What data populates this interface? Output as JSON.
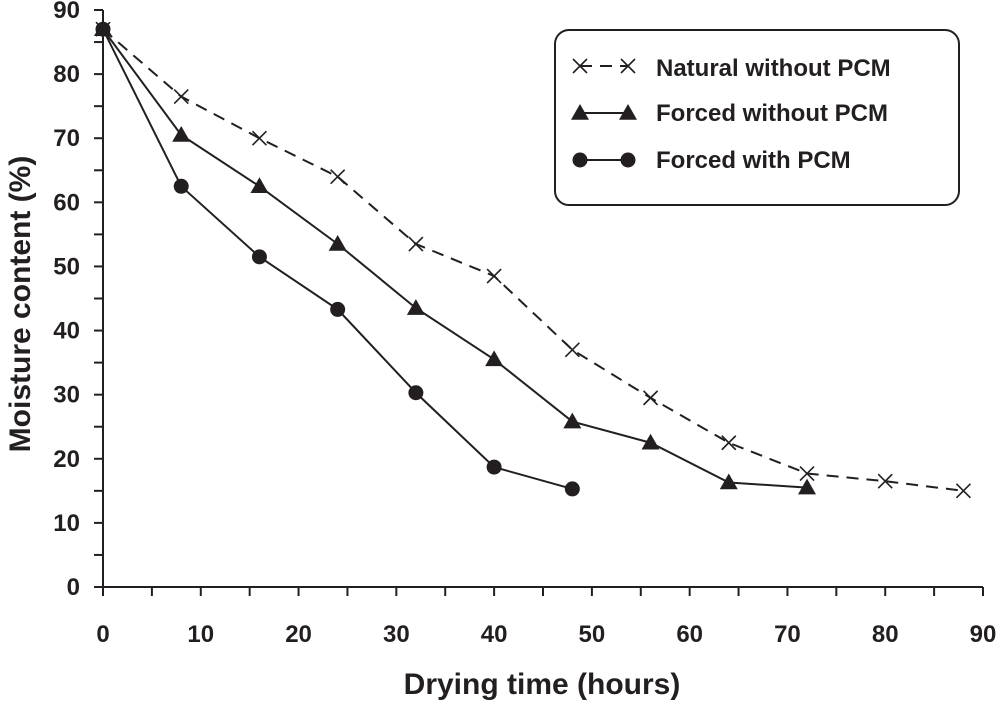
{
  "chart_data": {
    "type": "line",
    "title": "",
    "xlabel": "Drying time (hours)",
    "ylabel": "Moisture content (%)",
    "xlim": [
      0,
      90
    ],
    "ylim": [
      0,
      90
    ],
    "xticks": [
      0,
      10,
      20,
      30,
      40,
      50,
      60,
      70,
      80,
      90
    ],
    "yticks": [
      0,
      10,
      20,
      30,
      40,
      50,
      60,
      70,
      80,
      90
    ],
    "grid": false,
    "legend_position": "top-right",
    "series": [
      {
        "name": "Natural without PCM",
        "marker": "x",
        "line": "dashed",
        "x": [
          0,
          8,
          16,
          24,
          32,
          40,
          48,
          56,
          64,
          72,
          80,
          88
        ],
        "y": [
          87,
          76.5,
          70,
          64,
          53.5,
          48.5,
          37,
          29.5,
          22.5,
          17.7,
          16.5,
          15
        ]
      },
      {
        "name": "Forced without PCM",
        "marker": "triangle",
        "line": "solid",
        "x": [
          0,
          8,
          16,
          24,
          32,
          40,
          48,
          56,
          64,
          72
        ],
        "y": [
          87,
          70.5,
          62.5,
          53.5,
          43.5,
          35.5,
          25.8,
          22.5,
          16.3,
          15.5
        ]
      },
      {
        "name": "Forced with PCM",
        "marker": "circle",
        "line": "solid",
        "x": [
          0,
          8,
          16,
          24,
          32,
          40,
          48
        ],
        "y": [
          87,
          62.5,
          51.5,
          43.3,
          30.3,
          18.7,
          15.3
        ]
      }
    ]
  },
  "colors": {
    "ink": "#231f20",
    "background": "#ffffff"
  }
}
